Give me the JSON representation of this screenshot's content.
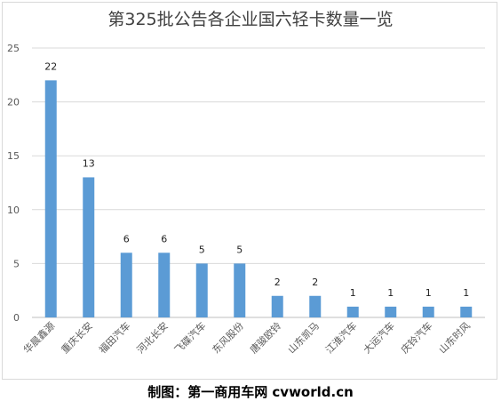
{
  "chart_data": {
    "type": "bar",
    "title": "第325批公告各企业国六轻卡数量一览",
    "categories": [
      "华晨鑫源",
      "重庆长安",
      "福田汽车",
      "河北长安",
      "飞碟汽车",
      "东风股份",
      "唐骏欧铃",
      "山东凯马",
      "江淮汽车",
      "大运汽车",
      "庆铃汽车",
      "山东时风"
    ],
    "values": [
      22,
      13,
      6,
      6,
      5,
      5,
      2,
      2,
      1,
      1,
      1,
      1
    ],
    "ylim": [
      0,
      25
    ],
    "yticks": [
      0,
      5,
      10,
      15,
      20,
      25
    ],
    "grid": true,
    "bar_color": "#5b9bd5",
    "data_labels": true
  },
  "footer": {
    "credit": "制图：第一商用车网 cvworld.cn"
  }
}
